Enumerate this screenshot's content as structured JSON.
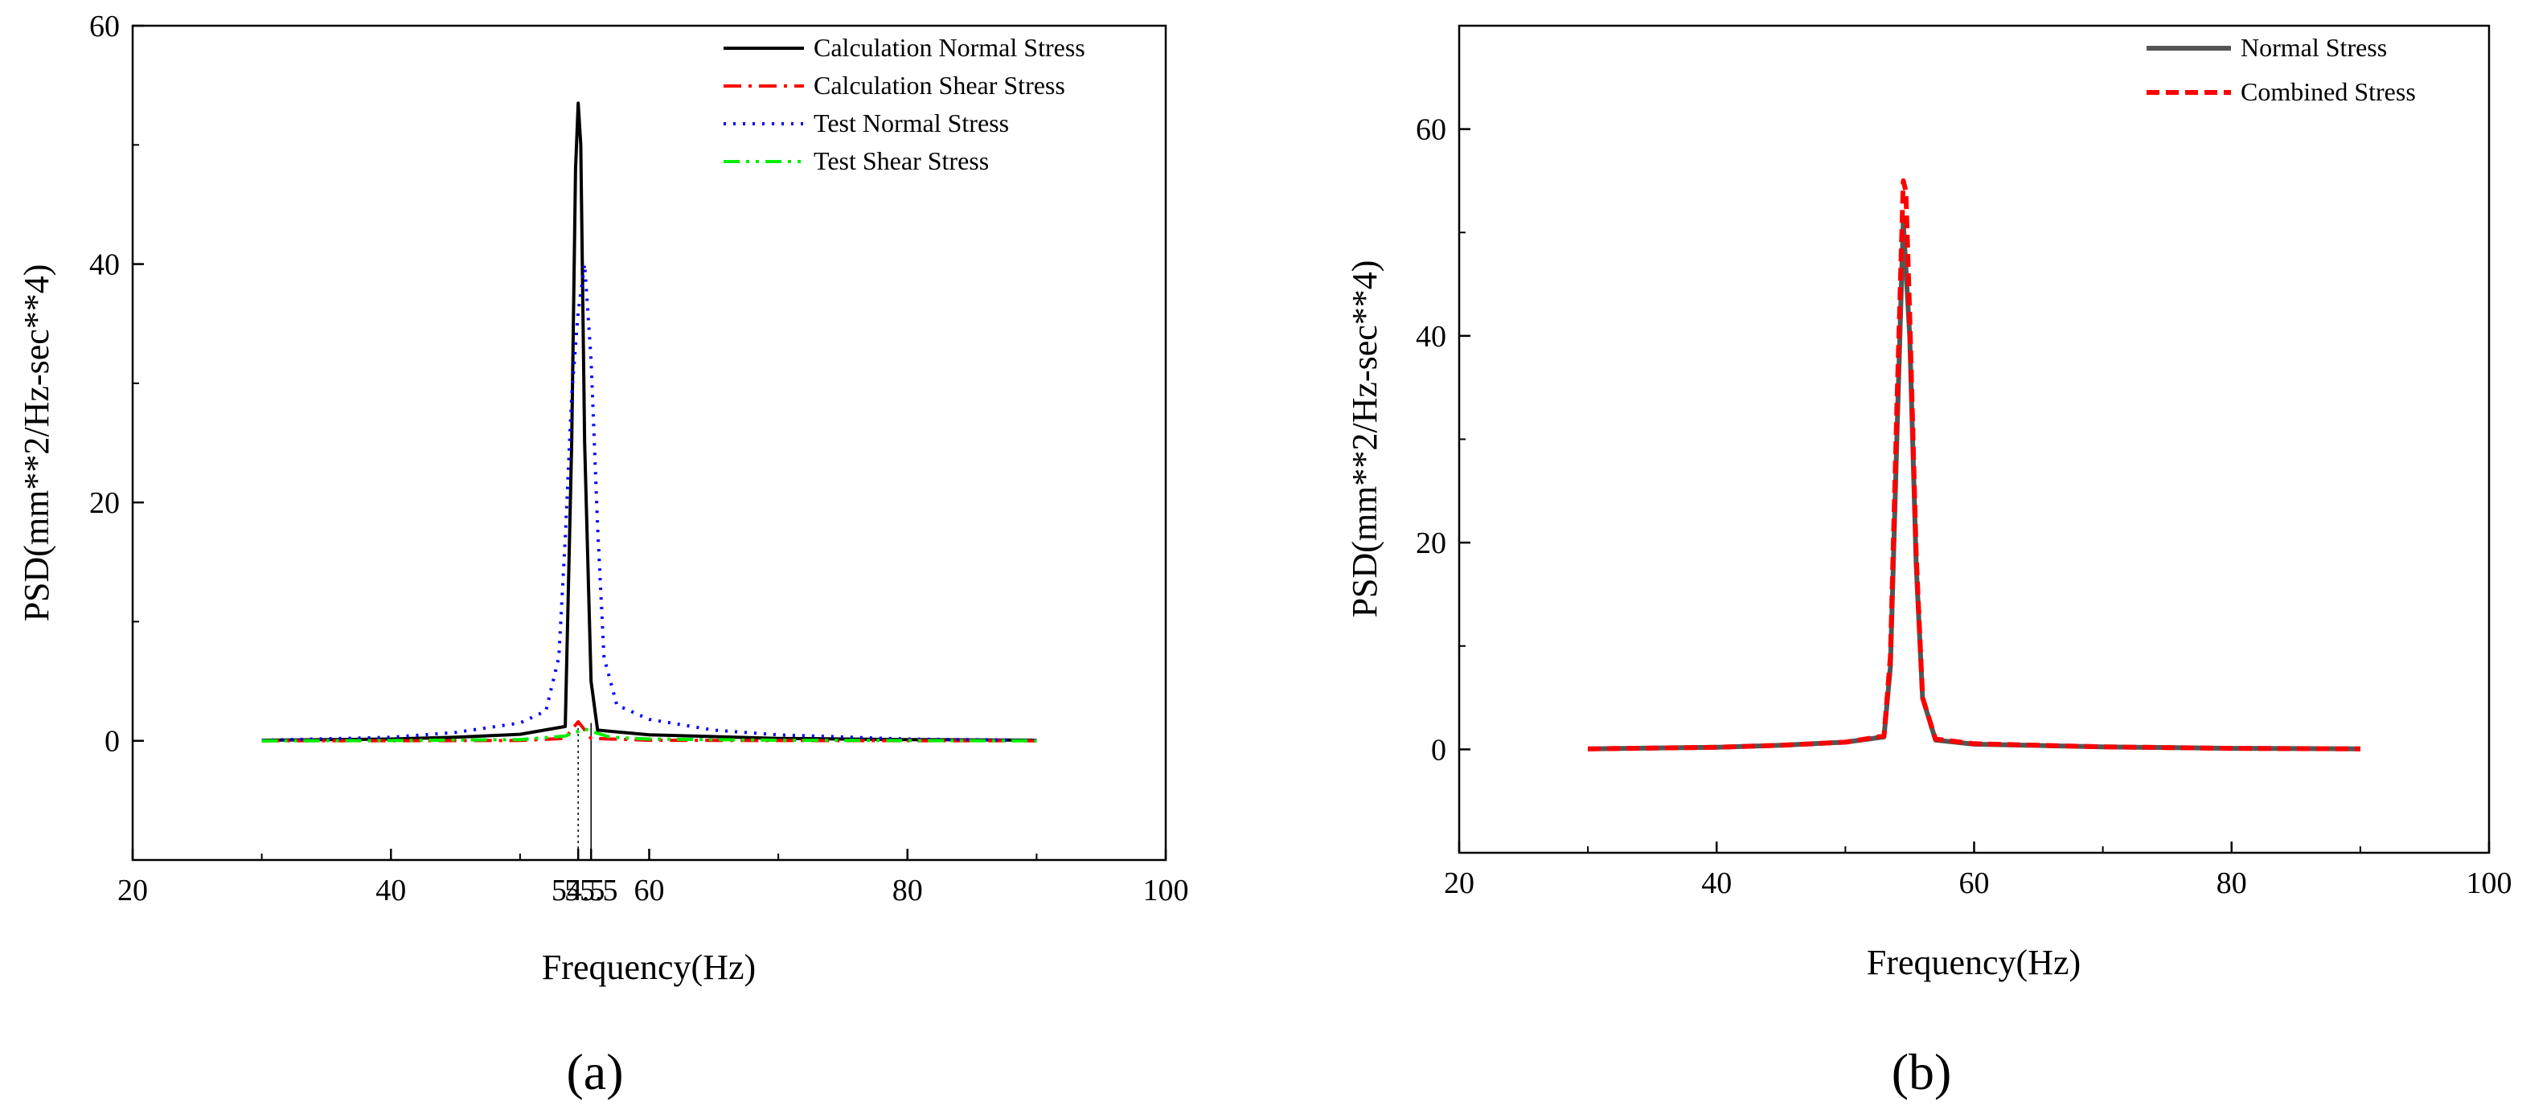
{
  "chart_data": [
    {
      "type": "line",
      "panel_label": "(a)",
      "xlabel": "Frequency(Hz)",
      "ylabel": "PSD(mm**2/Hz-sec**4)",
      "xlim": [
        20,
        100
      ],
      "ylim": [
        -10,
        60
      ],
      "xticks": [
        {
          "value": 20,
          "label": "20"
        },
        {
          "value": 40,
          "label": "40"
        },
        {
          "value": 54.5,
          "label": "54.5"
        },
        {
          "value": 55.5,
          "label": "55.5"
        },
        {
          "value": 60,
          "label": "60"
        },
        {
          "value": 80,
          "label": "80"
        },
        {
          "value": 100,
          "label": "100"
        }
      ],
      "yticks": [
        {
          "value": 0,
          "label": "0"
        },
        {
          "value": 20,
          "label": "20"
        },
        {
          "value": 40,
          "label": "40"
        },
        {
          "value": 60,
          "label": "60"
        }
      ],
      "reference_lines_x": [
        54.5,
        55.5
      ],
      "legend_position": "top-right",
      "series": [
        {
          "name": "Calculation Normal Stress",
          "color": "#000000",
          "dash": "solid",
          "x": [
            30,
            40,
            45,
            50,
            53.5,
            54.0,
            54.3,
            54.5,
            54.7,
            55.0,
            55.5,
            56,
            60,
            70,
            80,
            90
          ],
          "y": [
            0.05,
            0.15,
            0.3,
            0.55,
            1.2,
            25,
            48,
            53.5,
            50,
            25,
            5,
            0.9,
            0.5,
            0.2,
            0.1,
            0.05
          ]
        },
        {
          "name": "Calculation Shear Stress",
          "color": "#ff0000",
          "dash": "dashdot",
          "x": [
            30,
            40,
            50,
            53.5,
            54.2,
            54.5,
            54.8,
            55.5,
            60,
            70,
            80,
            90
          ],
          "y": [
            0,
            0.01,
            0.03,
            0.2,
            1.2,
            1.6,
            1.2,
            0.2,
            0.05,
            0.02,
            0.01,
            0
          ]
        },
        {
          "name": "Test Normal Stress",
          "color": "#0000ff",
          "dash": "dotted",
          "x": [
            30,
            40,
            45,
            50,
            52,
            53,
            53.5,
            54.0,
            54.5,
            55.0,
            55.5,
            56.0,
            56.5,
            57.5,
            60,
            65,
            70,
            80,
            90
          ],
          "y": [
            0.05,
            0.3,
            0.7,
            1.5,
            2.5,
            7,
            17,
            29,
            36,
            40,
            32,
            18,
            7,
            3,
            1.8,
            0.9,
            0.5,
            0.15,
            0.05
          ]
        },
        {
          "name": "Test Shear Stress",
          "color": "#00ee00",
          "dash": "dashdotdot",
          "x": [
            30,
            40,
            50,
            53.5,
            54.5,
            55.0,
            55.5,
            57,
            60,
            70,
            80,
            90
          ],
          "y": [
            0,
            0.02,
            0.1,
            0.4,
            0.8,
            1.0,
            0.8,
            0.3,
            0.15,
            0.05,
            0.02,
            0
          ]
        }
      ]
    },
    {
      "type": "line",
      "panel_label": "(b)",
      "xlabel": "Frequency(Hz)",
      "ylabel": "PSD(mm**2/Hz-sec**4)",
      "xlim": [
        20,
        100
      ],
      "ylim": [
        -10,
        70
      ],
      "xticks": [
        {
          "value": 20,
          "label": "20"
        },
        {
          "value": 40,
          "label": "40"
        },
        {
          "value": 60,
          "label": "60"
        },
        {
          "value": 80,
          "label": "80"
        },
        {
          "value": 100,
          "label": "100"
        }
      ],
      "yticks": [
        {
          "value": 0,
          "label": "0"
        },
        {
          "value": 20,
          "label": "20"
        },
        {
          "value": 40,
          "label": "40"
        },
        {
          "value": 60,
          "label": "60"
        }
      ],
      "legend_position": "top-right",
      "series": [
        {
          "name": "Normal Stress",
          "color": "#555555",
          "dash": "solid",
          "x": [
            30,
            40,
            45,
            50,
            53,
            53.5,
            54.0,
            54.5,
            55.0,
            55.5,
            56,
            57,
            60,
            70,
            80,
            90
          ],
          "y": [
            0.05,
            0.2,
            0.4,
            0.7,
            1.2,
            8,
            30,
            51,
            40,
            18,
            5,
            0.9,
            0.5,
            0.25,
            0.1,
            0.05
          ]
        },
        {
          "name": "Combined Stress",
          "color": "#ff0000",
          "dash": "dashed",
          "x": [
            30,
            40,
            45,
            50,
            53,
            53.5,
            54.0,
            54.5,
            54.7,
            55.0,
            55.5,
            56,
            57,
            60,
            70,
            80,
            90
          ],
          "y": [
            0.05,
            0.2,
            0.4,
            0.7,
            1.3,
            9,
            33,
            55,
            54,
            42,
            19,
            5,
            1.0,
            0.55,
            0.25,
            0.1,
            0.05
          ]
        }
      ]
    }
  ]
}
